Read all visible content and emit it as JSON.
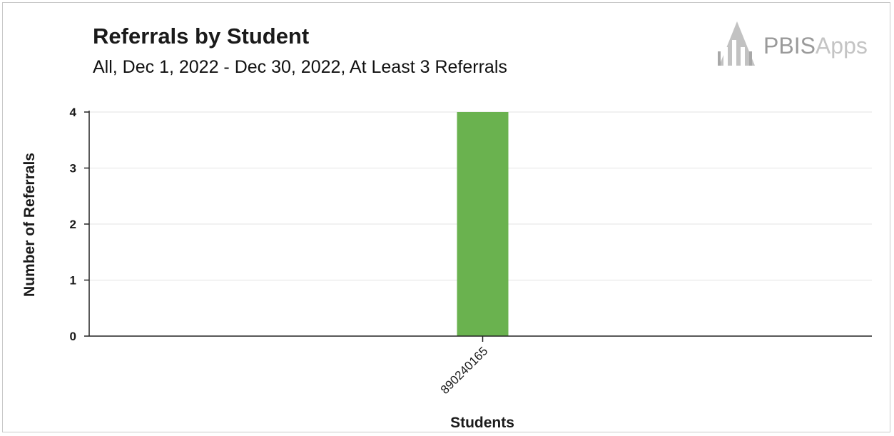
{
  "header": {
    "title": "Referrals by Student",
    "subtitle": "All, Dec 1, 2022 - Dec 30, 2022, At Least 3 Referrals"
  },
  "logo": {
    "text_main": "PBIS",
    "text_light": "Apps"
  },
  "chart_data": {
    "type": "bar",
    "title": "Referrals by Student",
    "subtitle": "All, Dec 1, 2022 - Dec 30, 2022, At Least 3 Referrals",
    "xlabel": "Students",
    "ylabel": "Number of Referrals",
    "categories": [
      "890240165"
    ],
    "values": [
      4
    ],
    "ylim": [
      0,
      4
    ],
    "yticks": [
      0,
      1,
      2,
      3,
      4
    ],
    "bar_color": "#6ab24f",
    "grid": true
  }
}
